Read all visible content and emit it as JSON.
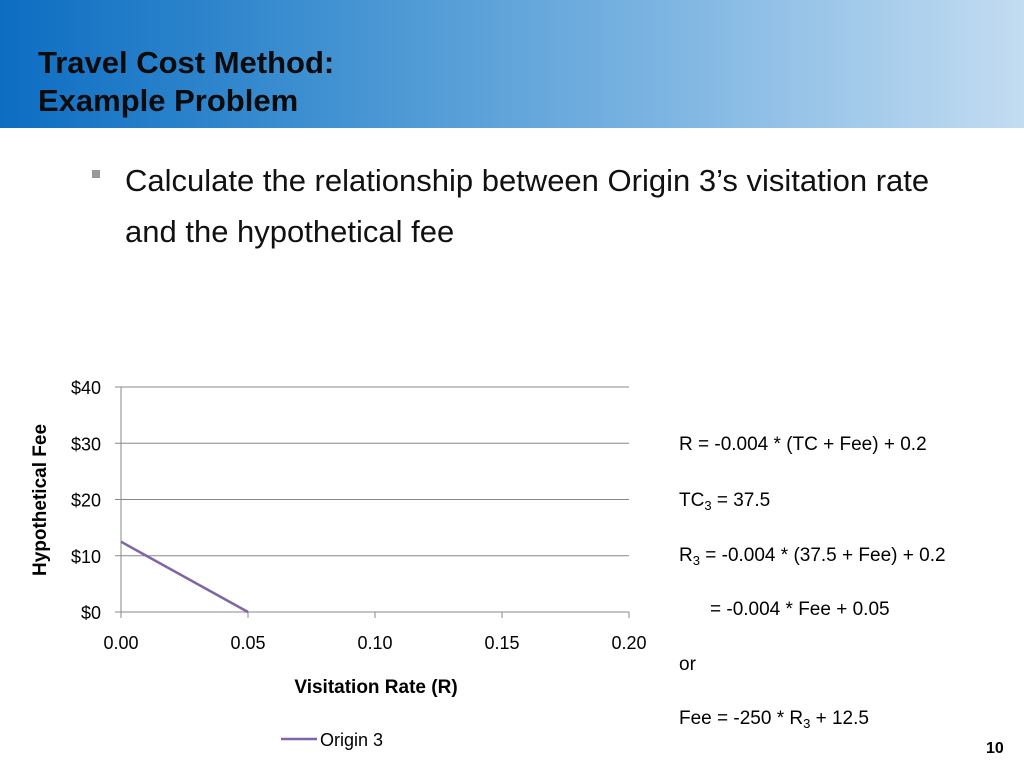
{
  "slide": {
    "title_line1": "Travel Cost Method:",
    "title_line2": "Example Problem",
    "bullet": "Calculate the relationship between Origin 3’s visitation rate and the hypothetical fee",
    "page_number": "10"
  },
  "equations": {
    "eq1": "R = -0.004 * (TC + Fee) + 0.2",
    "eq2_var": "TC",
    "eq2_sub": "3",
    "eq2_rest": " = 37.5",
    "eq3_var": "R",
    "eq3_sub": "3",
    "eq3_rest": " = -0.004 * (37.5 + Fee) + 0.2",
    "eq4": "= -0.004 * Fee + 0.05",
    "eq5": "or",
    "eq6_pre": "Fee = -250 * R",
    "eq6_sub": "3",
    "eq6_post": " + 12.5"
  },
  "colors": {
    "series": "#7f65a8",
    "grid": "#888888"
  },
  "chart_data": {
    "type": "line",
    "xlabel": "Visitation Rate (R)",
    "ylabel": "Hypothetical Fee",
    "xlim": [
      0,
      0.2
    ],
    "ylim": [
      0,
      40
    ],
    "x_ticks": [
      "0.00",
      "0.05",
      "0.10",
      "0.15",
      "0.20"
    ],
    "y_ticks": [
      "$0",
      "$10",
      "$20",
      "$30",
      "$40"
    ],
    "grid": "horizontal",
    "legend": "bottom",
    "series": [
      {
        "name": "Origin 3",
        "x": [
          0,
          0.05
        ],
        "y": [
          12.5,
          0
        ]
      }
    ]
  }
}
